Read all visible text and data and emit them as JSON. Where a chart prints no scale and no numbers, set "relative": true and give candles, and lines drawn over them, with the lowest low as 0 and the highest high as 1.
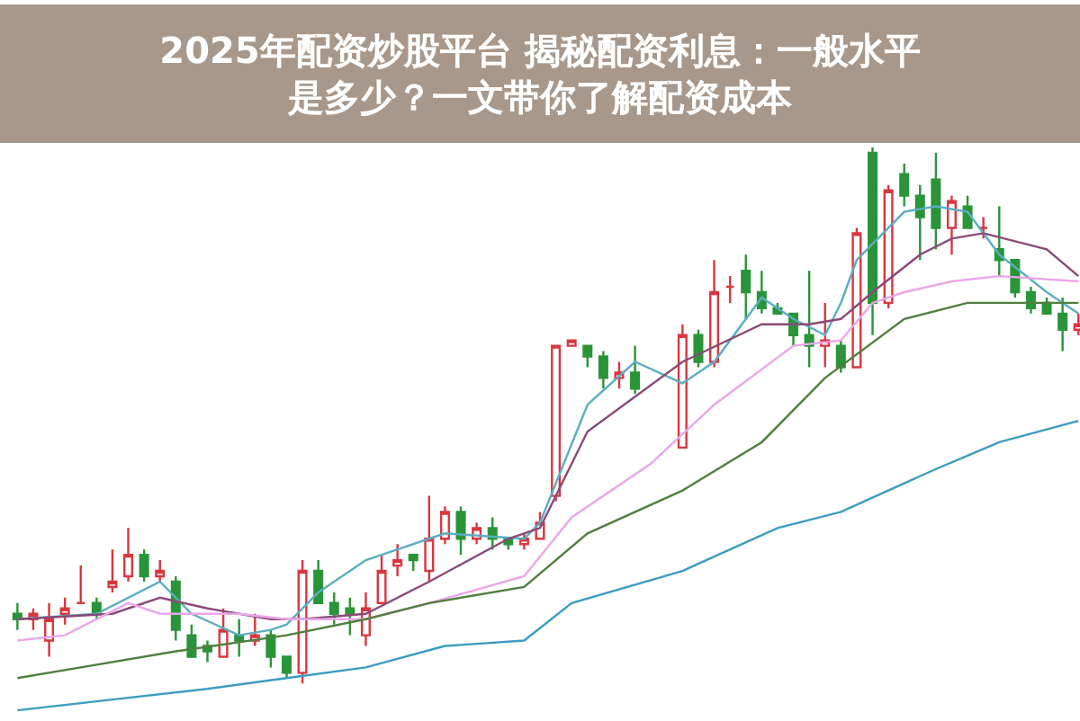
{
  "chart_data": {
    "type": "candlestick",
    "relative": true,
    "title": "2025年配资炒股平台 揭秘配资利息：一般水平是多少？一文带你了解配资成本",
    "categories": [
      null,
      null,
      null,
      null,
      null,
      null,
      null,
      null,
      null,
      null,
      null,
      null,
      null,
      null,
      null,
      null,
      null,
      null,
      null,
      null,
      null,
      null,
      null,
      null,
      null,
      null,
      null,
      null,
      null,
      null,
      null,
      null,
      null,
      null,
      null,
      null,
      null,
      null,
      null,
      null,
      null,
      null,
      null,
      null,
      null,
      null,
      null,
      null,
      null,
      null,
      null,
      null,
      null,
      null,
      null,
      null,
      null,
      null,
      null,
      null,
      null,
      null,
      null,
      null,
      null,
      null,
      null,
      null
    ],
    "colors": [
      "#2a9438",
      "#d9363e",
      "#d9363e",
      "#d9363e",
      "#d9363e",
      "#2a9438",
      "#d9363e",
      "#d9363e",
      "#2a9438",
      "#d9363e",
      "#2a9438",
      "#2a9438",
      "#2a9438",
      "#d9363e",
      "#2a9438",
      "#d9363e",
      "#2a9438",
      "#2a9438",
      "#d9363e",
      "#2a9438",
      "#2a9438",
      "#2a9438",
      "#d9363e",
      "#d9363e",
      "#d9363e",
      "#2a9438",
      "#d9363e",
      "#d9363e",
      "#2a9438",
      "#d9363e",
      "#2a9438",
      "#2a9438",
      "#d9363e",
      "#d9363e",
      "#d9363e",
      "#d9363e",
      "#2a9438",
      "#2a9438",
      "#d9363e",
      "#2a9438",
      null,
      null,
      "#d9363e",
      "#2a9438",
      "#d9363e",
      "#d9363e",
      "#2a9438",
      "#2a9438",
      "#2a9438",
      "#2a9438",
      "#2a9438",
      "#d9363e",
      "#2a9438",
      "#d9363e",
      "#2a9438",
      "#d9363e",
      "#2a9438",
      "#2a9438",
      "#2a9438",
      "#d9363e",
      "#2a9438",
      "#d9363e",
      "#2a9438",
      "#2a9438",
      "#2a9438",
      "#2a9438",
      "#2a9438",
      "#d9363e"
    ],
    "ohlc": [
      [
        0.13,
        0.15,
        0.1,
        0.12
      ],
      [
        0.12,
        0.14,
        0.1,
        0.13
      ],
      [
        0.08,
        0.15,
        0.05,
        0.12
      ],
      [
        0.13,
        0.16,
        0.11,
        0.14
      ],
      [
        0.15,
        0.22,
        0.15,
        0.15
      ],
      [
        0.15,
        0.16,
        0.12,
        0.13
      ],
      [
        0.18,
        0.25,
        0.17,
        0.19
      ],
      [
        0.2,
        0.29,
        0.19,
        0.24
      ],
      [
        0.24,
        0.25,
        0.19,
        0.2
      ],
      [
        0.2,
        0.23,
        0.19,
        0.21
      ],
      [
        0.19,
        0.2,
        0.08,
        0.1
      ],
      [
        0.09,
        0.11,
        0.05,
        0.05
      ],
      [
        0.07,
        0.08,
        0.04,
        0.06
      ],
      [
        0.05,
        0.14,
        0.05,
        0.1
      ],
      [
        0.09,
        0.12,
        0.05,
        0.08
      ],
      [
        0.08,
        0.13,
        0.07,
        0.09
      ],
      [
        0.09,
        0.1,
        0.03,
        0.05
      ],
      [
        0.05,
        0.05,
        0.01,
        0.02
      ],
      [
        0.02,
        0.23,
        0,
        0.21
      ],
      [
        0.21,
        0.23,
        0.15,
        0.15
      ],
      [
        0.15,
        0.17,
        0.11,
        0.13
      ],
      [
        0.14,
        0.16,
        0.09,
        0.13
      ],
      [
        0.09,
        0.17,
        0.07,
        0.14
      ],
      [
        0.15,
        0.24,
        0.15,
        0.21
      ],
      [
        0.22,
        0.26,
        0.2,
        0.23
      ],
      [
        0.24,
        0.24,
        0.21,
        0.23
      ],
      [
        0.21,
        0.35,
        0.19,
        0.27
      ],
      [
        0.27,
        0.33,
        0.26,
        0.32
      ],
      [
        0.32,
        0.33,
        0.24,
        0.27
      ],
      [
        0.27,
        0.3,
        0.26,
        0.29
      ],
      [
        0.29,
        0.31,
        0.25,
        0.27
      ],
      [
        0.27,
        0.27,
        0.25,
        0.26
      ],
      [
        0.26,
        0.28,
        0.25,
        0.27
      ],
      [
        0.27,
        0.32,
        0.27,
        0.3
      ],
      [
        0.35,
        0.63,
        0.34,
        0.63
      ],
      [
        0.63,
        0.64,
        0.63,
        0.64
      ],
      [
        0.63,
        0.63,
        0.59,
        0.61
      ],
      [
        0.61,
        0.62,
        0.55,
        0.57
      ],
      [
        0.57,
        0.6,
        0.55,
        0.58
      ],
      [
        0.58,
        0.63,
        0.54,
        0.55
      ],
      null,
      null,
      [
        0.44,
        0.67,
        0.44,
        0.65
      ],
      [
        0.65,
        0.66,
        0.59,
        0.6
      ],
      [
        0.6,
        0.79,
        0.59,
        0.73
      ],
      [
        0.74,
        0.76,
        0.71,
        0.74
      ],
      [
        0.77,
        0.8,
        0.68,
        0.73
      ],
      [
        0.73,
        0.77,
        0.69,
        0.7
      ],
      [
        0.7,
        0.71,
        0.69,
        0.69
      ],
      [
        0.69,
        0.69,
        0.63,
        0.65
      ],
      [
        0.65,
        0.77,
        0.59,
        0.63
      ],
      [
        0.63,
        0.71,
        0.59,
        0.64
      ],
      [
        0.63,
        0.64,
        0.58,
        0.59
      ],
      [
        0.59,
        0.85,
        0.59,
        0.84
      ],
      [
        0.99,
        1,
        0.65,
        0.71
      ],
      [
        0.71,
        0.93,
        0.7,
        0.92
      ],
      [
        0.95,
        0.97,
        0.89,
        0.91
      ],
      [
        0.91,
        0.93,
        0.79,
        0.87
      ],
      [
        0.94,
        0.99,
        0.81,
        0.85
      ],
      [
        0.85,
        0.91,
        0.8,
        0.9
      ],
      [
        0.89,
        0.91,
        0.85,
        0.85
      ],
      [
        0.85,
        0.87,
        0.83,
        0.85
      ],
      [
        0.81,
        0.89,
        0.76,
        0.79
      ],
      [
        0.79,
        0.79,
        0.72,
        0.73
      ],
      [
        0.73,
        0.74,
        0.69,
        0.7
      ],
      [
        0.71,
        0.72,
        0.69,
        0.69
      ],
      [
        0.69,
        0.72,
        0.62,
        0.66
      ],
      [
        0.66,
        0.69,
        0.65,
        0.67
      ]
    ],
    "series": [
      {
        "type": "line",
        "color": "#5aaec0",
        "values": [
          0.12,
          null,
          null,
          null,
          null,
          0.13,
          null,
          null,
          null,
          0.19,
          null,
          0.13,
          null,
          null,
          0.09,
          null,
          0.1,
          0.11,
          null,
          0.17,
          null,
          null,
          0.23,
          null,
          0.25,
          null,
          null,
          0.28,
          null,
          null,
          null,
          null,
          0.27,
          0.3,
          null,
          null,
          0.52,
          null,
          null,
          0.6,
          null,
          null,
          0.56,
          null,
          0.6,
          null,
          null,
          0.72,
          null,
          0.68,
          null,
          0.65,
          0.71,
          0.79,
          null,
          null,
          0.88,
          null,
          0.89,
          null,
          0.88,
          null,
          0.8,
          null,
          null,
          0.73,
          null,
          0.69
        ]
      },
      {
        "type": "line",
        "color": "#8a4a78",
        "values": [
          0.12,
          null,
          null,
          null,
          null,
          null,
          0.13,
          null,
          null,
          0.16,
          null,
          null,
          0.14,
          null,
          null,
          null,
          0.12,
          null,
          0.12,
          null,
          null,
          null,
          0.13,
          null,
          null,
          null,
          0.19,
          null,
          null,
          null,
          null,
          0.27,
          null,
          0.29,
          null,
          null,
          0.47,
          null,
          null,
          null,
          null,
          null,
          0.6,
          null,
          null,
          null,
          null,
          0.67,
          null,
          null,
          0.67,
          null,
          0.68,
          null,
          0.73,
          null,
          null,
          0.8,
          null,
          0.83,
          null,
          0.84,
          null,
          null,
          null,
          0.81,
          null,
          0.76
        ]
      },
      {
        "type": "line",
        "color": "#e9a6e9",
        "values": [
          0.08,
          null,
          null,
          0.09,
          null,
          null,
          null,
          0.15,
          null,
          0.13,
          null,
          null,
          null,
          null,
          0.13,
          null,
          null,
          0.12,
          null,
          null,
          null,
          null,
          0.12,
          null,
          null,
          null,
          0.15,
          null,
          null,
          null,
          null,
          null,
          0.2,
          null,
          null,
          0.31,
          null,
          null,
          null,
          null,
          0.41,
          null,
          null,
          null,
          0.52,
          null,
          null,
          null,
          null,
          0.63,
          null,
          null,
          0.64,
          null,
          0.71,
          null,
          0.73,
          null,
          null,
          0.75,
          null,
          null,
          0.76,
          null,
          null,
          null,
          null,
          0.75
        ]
      },
      {
        "type": "line",
        "color": "#4f7f3f",
        "values": [
          0.01,
          null,
          null,
          null,
          0.03,
          null,
          null,
          null,
          null,
          null,
          0.06,
          null,
          null,
          null,
          null,
          null,
          null,
          0.09,
          null,
          null,
          null,
          null,
          0.12,
          null,
          null,
          null,
          0.15,
          null,
          null,
          null,
          null,
          null,
          0.18,
          null,
          null,
          null,
          0.28,
          null,
          null,
          null,
          null,
          null,
          0.36,
          null,
          null,
          null,
          null,
          0.45,
          null,
          null,
          null,
          0.57,
          null,
          null,
          null,
          null,
          0.68,
          null,
          null,
          null,
          0.71,
          null,
          null,
          null,
          0.71,
          null,
          null,
          0.71
        ]
      },
      {
        "type": "line",
        "color": "#3c9cc0",
        "values": [
          -0.05,
          null,
          null,
          null,
          null,
          null,
          -0.03,
          null,
          null,
          null,
          null,
          null,
          -0.01,
          null,
          null,
          null,
          null,
          0.01,
          null,
          null,
          null,
          null,
          0.03,
          null,
          null,
          null,
          null,
          0.07,
          null,
          null,
          null,
          null,
          0.08,
          null,
          null,
          0.15,
          null,
          null,
          null,
          null,
          null,
          null,
          0.21,
          null,
          null,
          null,
          null,
          null,
          0.29,
          null,
          null,
          null,
          0.32,
          null,
          null,
          null,
          null,
          null,
          0.4,
          null,
          null,
          null,
          0.45,
          null,
          null,
          null,
          null,
          0.49
        ]
      }
    ]
  }
}
